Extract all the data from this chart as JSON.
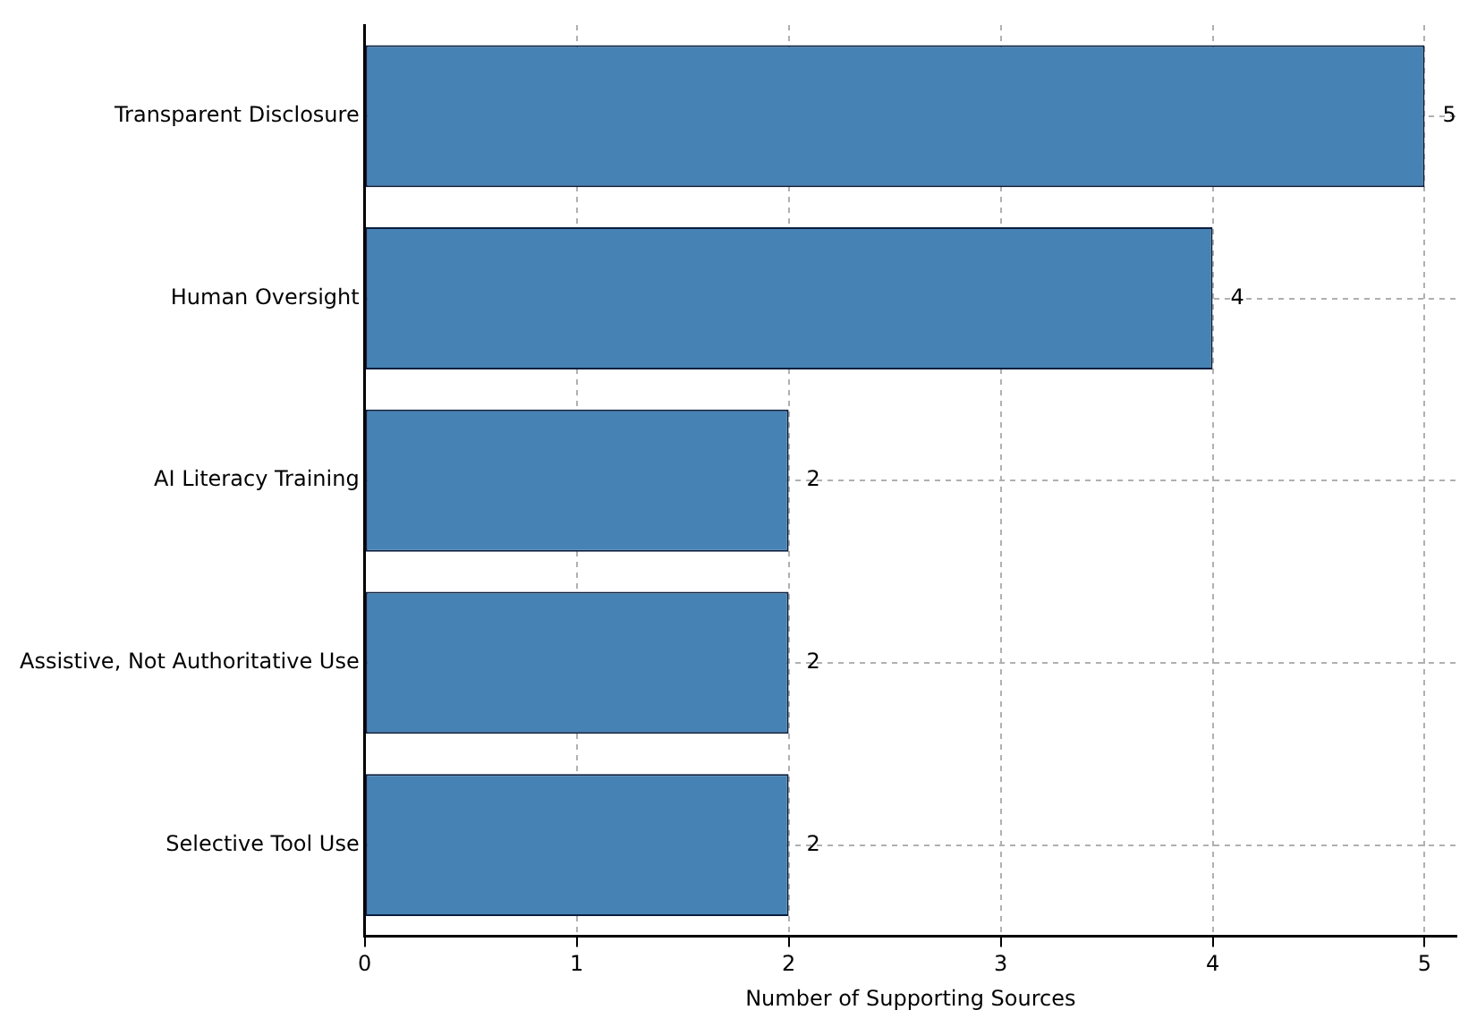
{
  "chart_data": {
    "type": "bar",
    "orientation": "horizontal",
    "xlabel": "Number of Supporting Sources",
    "categories": [
      "Transparent Disclosure",
      "Human Oversight",
      "AI Literacy Training",
      "Assistive, Not Authoritative Use",
      "Selective Tool Use"
    ],
    "values": [
      5,
      4,
      2,
      2,
      2
    ],
    "color": "#4682b4",
    "xlim": [
      0,
      5.15
    ],
    "xticks": [
      0,
      1,
      2,
      3,
      4,
      5
    ],
    "grid": true,
    "data_labels": true
  }
}
